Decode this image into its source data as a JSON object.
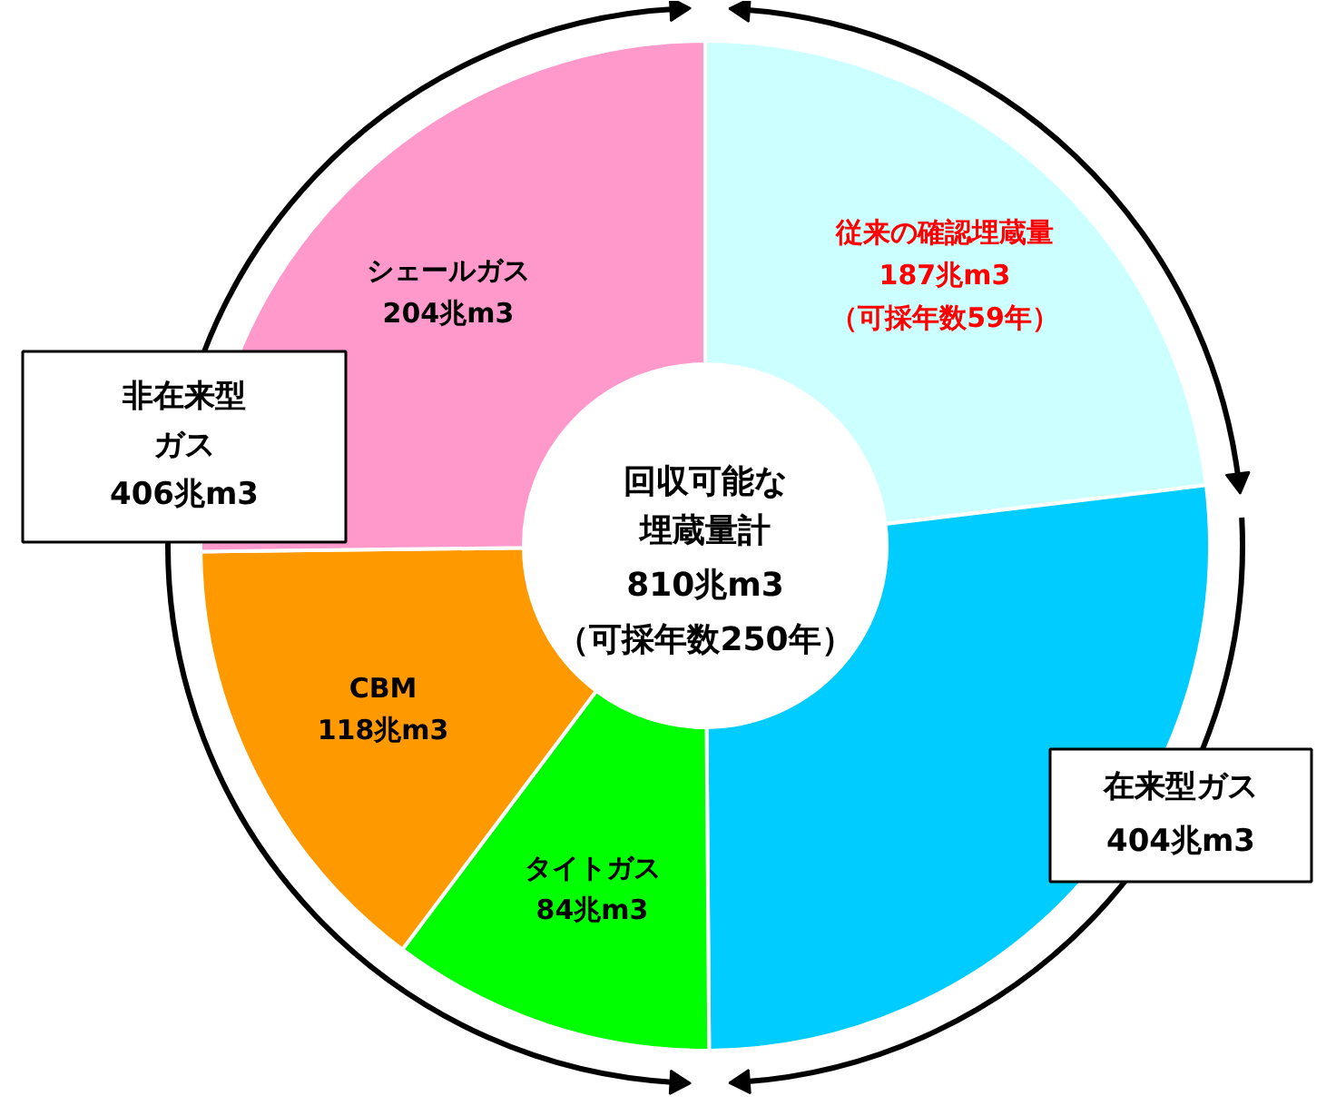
{
  "chart_data": {
    "type": "donut",
    "categories": [
      "従来の確認埋蔵量",
      null,
      "タイトガス",
      "CBM",
      "シェールガス"
    ],
    "values": [
      187,
      217,
      84,
      118,
      204
    ],
    "colors": [
      "#ccffff",
      "#00ccff",
      "#00ff00",
      "#ff9900",
      "#ff99cc"
    ],
    "value_labels": [
      "187兆m3\n（可採年数59年）",
      null,
      "84兆m3",
      "118兆m3",
      "204兆m3"
    ],
    "annotations": [
      "回収可能な",
      "埋蔵量計",
      "810兆m3",
      "（可採年数250年）",
      "非在来型",
      "ガス",
      "406兆m3",
      "在来型ガス",
      "404兆m3"
    ]
  }
}
